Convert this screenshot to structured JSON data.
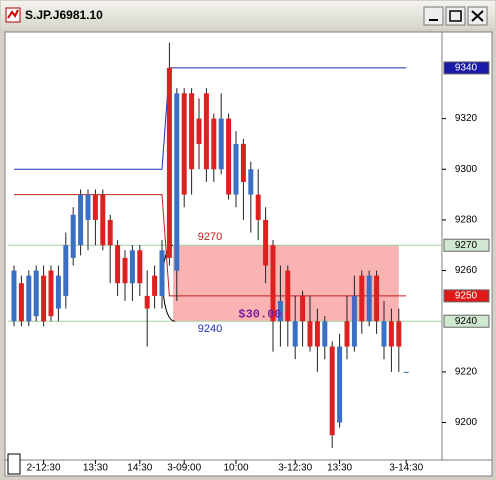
{
  "window_title": "S.JP.J6981.10",
  "chart_data": {
    "type": "candlestick",
    "categories": [
      null,
      null,
      null,
      null,
      "2-12:30",
      null,
      null,
      null,
      null,
      null,
      null,
      "13:30",
      null,
      null,
      null,
      null,
      null,
      "14:30",
      null,
      null,
      null,
      null,
      null,
      "3-09:00",
      null,
      null,
      null,
      null,
      null,
      null,
      "10:00",
      null,
      null,
      null,
      null,
      null,
      null,
      null,
      "3-12:30",
      null,
      null,
      null,
      null,
      null,
      "13:30",
      null,
      null,
      null,
      null,
      null,
      null,
      null,
      null,
      "3-14:30"
    ],
    "open": [
      9240,
      9255,
      9240,
      9242,
      9258,
      9260,
      9245,
      9250,
      9265,
      9270,
      9280,
      9290,
      9290,
      9280,
      9270,
      9265,
      9255,
      9268,
      9250,
      9258,
      9250,
      9340,
      9260,
      9330,
      9330,
      9320,
      9330,
      9320,
      9300,
      9320,
      9290,
      9310,
      9290,
      9290,
      9280,
      9270,
      9240,
      9260,
      9230,
      9250,
      9240,
      9240,
      9230,
      9230,
      9200,
      9240,
      9230,
      9258,
      9240,
      9258,
      9230,
      9240,
      9240,
      9220
    ],
    "high": [
      9262,
      9258,
      9260,
      9262,
      9262,
      9262,
      9262,
      9275,
      9285,
      9292,
      9292,
      9292,
      9292,
      9282,
      9272,
      9268,
      9270,
      9270,
      9260,
      9262,
      9272,
      9350,
      9332,
      9332,
      9332,
      9328,
      9332,
      9322,
      9330,
      9322,
      9315,
      9312,
      9303,
      9300,
      9285,
      9272,
      9262,
      9262,
      9250,
      9252,
      9250,
      9245,
      9242,
      9232,
      9235,
      9250,
      9258,
      9260,
      9260,
      9260,
      9248,
      9245,
      9245,
      9220
    ],
    "low": [
      9238,
      9238,
      9238,
      9240,
      9238,
      9240,
      9240,
      9245,
      9262,
      9266,
      9268,
      9270,
      9268,
      9255,
      9250,
      9248,
      9248,
      9250,
      9230,
      9245,
      9245,
      9262,
      9248,
      9285,
      9290,
      9300,
      9295,
      9295,
      9298,
      9288,
      9285,
      9280,
      9275,
      9272,
      9255,
      9228,
      9230,
      9230,
      9225,
      9230,
      9228,
      9220,
      9225,
      9190,
      9198,
      9225,
      9228,
      9235,
      9238,
      9235,
      9225,
      9220,
      9220,
      9220
    ],
    "close": [
      9260,
      9240,
      9258,
      9260,
      9240,
      9242,
      9258,
      9270,
      9282,
      9290,
      9290,
      9280,
      9270,
      9270,
      9255,
      9255,
      9268,
      9255,
      9245,
      9250,
      9268,
      9265,
      9330,
      9290,
      9300,
      9310,
      9300,
      9300,
      9320,
      9290,
      9310,
      9295,
      9300,
      9280,
      9262,
      9240,
      9248,
      9240,
      9240,
      9240,
      9230,
      9230,
      9240,
      9195,
      9230,
      9230,
      9250,
      9240,
      9258,
      9240,
      9240,
      9230,
      9230,
      9220
    ],
    "up_color": "#3a6fc4",
    "down_color": "#dd2020",
    "ylim": [
      9186,
      9353
    ],
    "yticks": [
      9200,
      9220,
      9260,
      9280,
      9300,
      9320
    ],
    "lines": [
      {
        "color": "#1f2fb0",
        "x": [
          0,
          20,
          21,
          53
        ],
        "y": [
          9300,
          9300,
          9340,
          9340
        ]
      },
      {
        "color": "#c02020",
        "x": [
          0,
          20,
          21,
          53
        ],
        "y": [
          9290,
          9290,
          9250,
          9250
        ]
      }
    ],
    "level_lines": {
      "color": "#9fd09f",
      "values": [
        9270,
        9240
      ]
    },
    "zone": {
      "from": 21.5,
      "to": 52,
      "top": 9270,
      "bottom": 9240,
      "color": "#f7a0a0",
      "label": "$30.00",
      "label_color": "#7a1fa0"
    },
    "annotations": [
      {
        "text": "9270",
        "value": 9270,
        "color": "#c02020"
      },
      {
        "text": "9240",
        "value": 9240,
        "color": "#1f2fb0"
      }
    ],
    "price_markers": [
      {
        "label": "9340",
        "value": 9340,
        "bg": "#1a1aa8",
        "fg": "#ffffff"
      },
      {
        "label": "9270",
        "value": 9270,
        "bg": "#cfe8cf",
        "fg": "#000000"
      },
      {
        "label": "9250",
        "value": 9250,
        "bg": "#e01818",
        "fg": "#ffffff"
      },
      {
        "label": "9240",
        "value": 9240,
        "bg": "#cfe8cf",
        "fg": "#000000"
      }
    ]
  }
}
